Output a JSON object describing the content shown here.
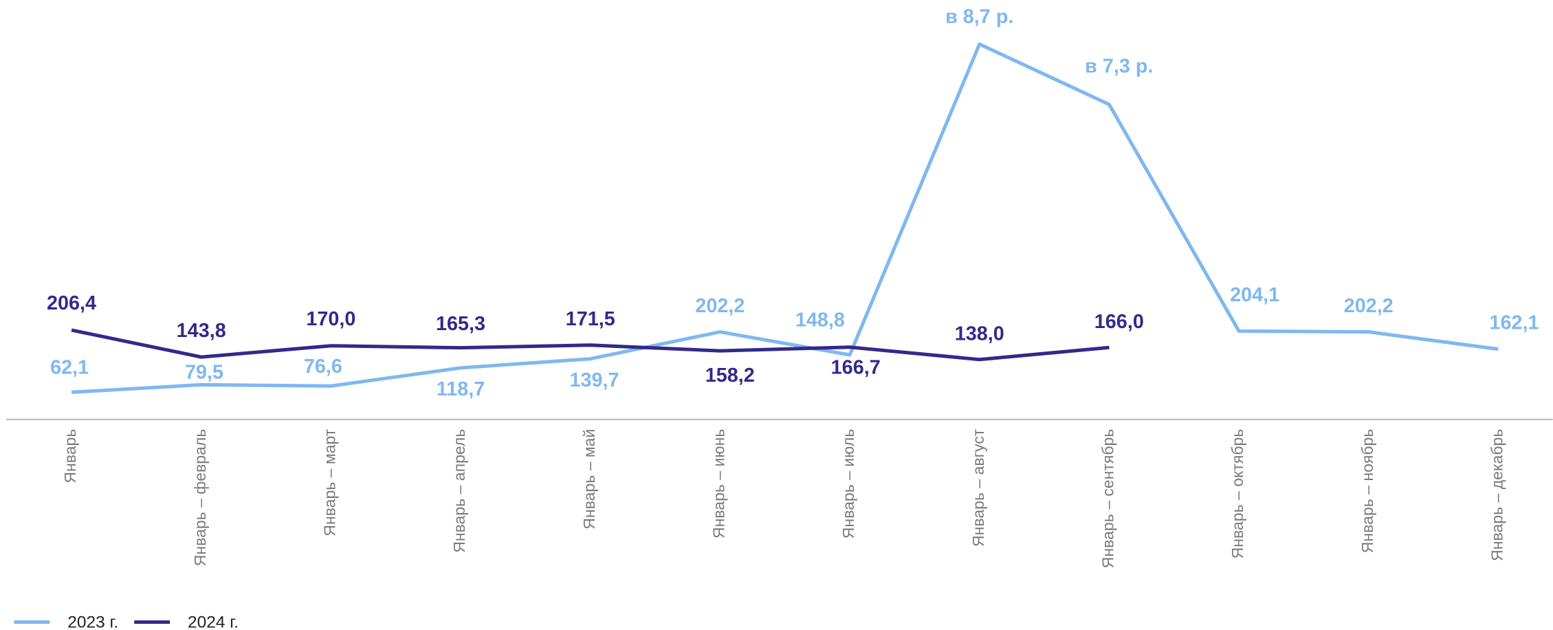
{
  "chart_data": {
    "type": "line",
    "categories": [
      "Январь",
      "Январь – февраль",
      "Январь – март",
      "Январь – апрель",
      "Январь – май",
      "Январь – июнь",
      "Январь – июль",
      "Январь – август",
      "Январь – сентябрь",
      "Январь – октябрь",
      "Январь – ноябрь",
      "Январь – декабрь"
    ],
    "series": [
      {
        "name": "2023 г.",
        "color": "#7fb8f0",
        "values": [
          62.1,
          79.5,
          76.6,
          118.7,
          139.7,
          202.2,
          148.8,
          870,
          730,
          204.1,
          202.2,
          162.1
        ],
        "value_labels": [
          "62,1",
          "79,5",
          "76,6",
          "118,7",
          "139,7",
          "202,2",
          "148,8",
          "в 8,7 р.",
          "в 7,3 р.",
          "204,1",
          "202,2",
          "162,1"
        ]
      },
      {
        "name": "2024 г.",
        "color": "#33298a",
        "values": [
          206.4,
          143.8,
          170.0,
          165.3,
          171.5,
          158.2,
          166.7,
          138.0,
          166.0,
          null,
          null,
          null
        ],
        "value_labels": [
          "206,4",
          "143,8",
          "170,0",
          "165,3",
          "171,5",
          "158,2",
          "166,7",
          "138,0",
          "166,0",
          null,
          null,
          null
        ]
      }
    ],
    "ylim": [
      0,
      900
    ]
  }
}
